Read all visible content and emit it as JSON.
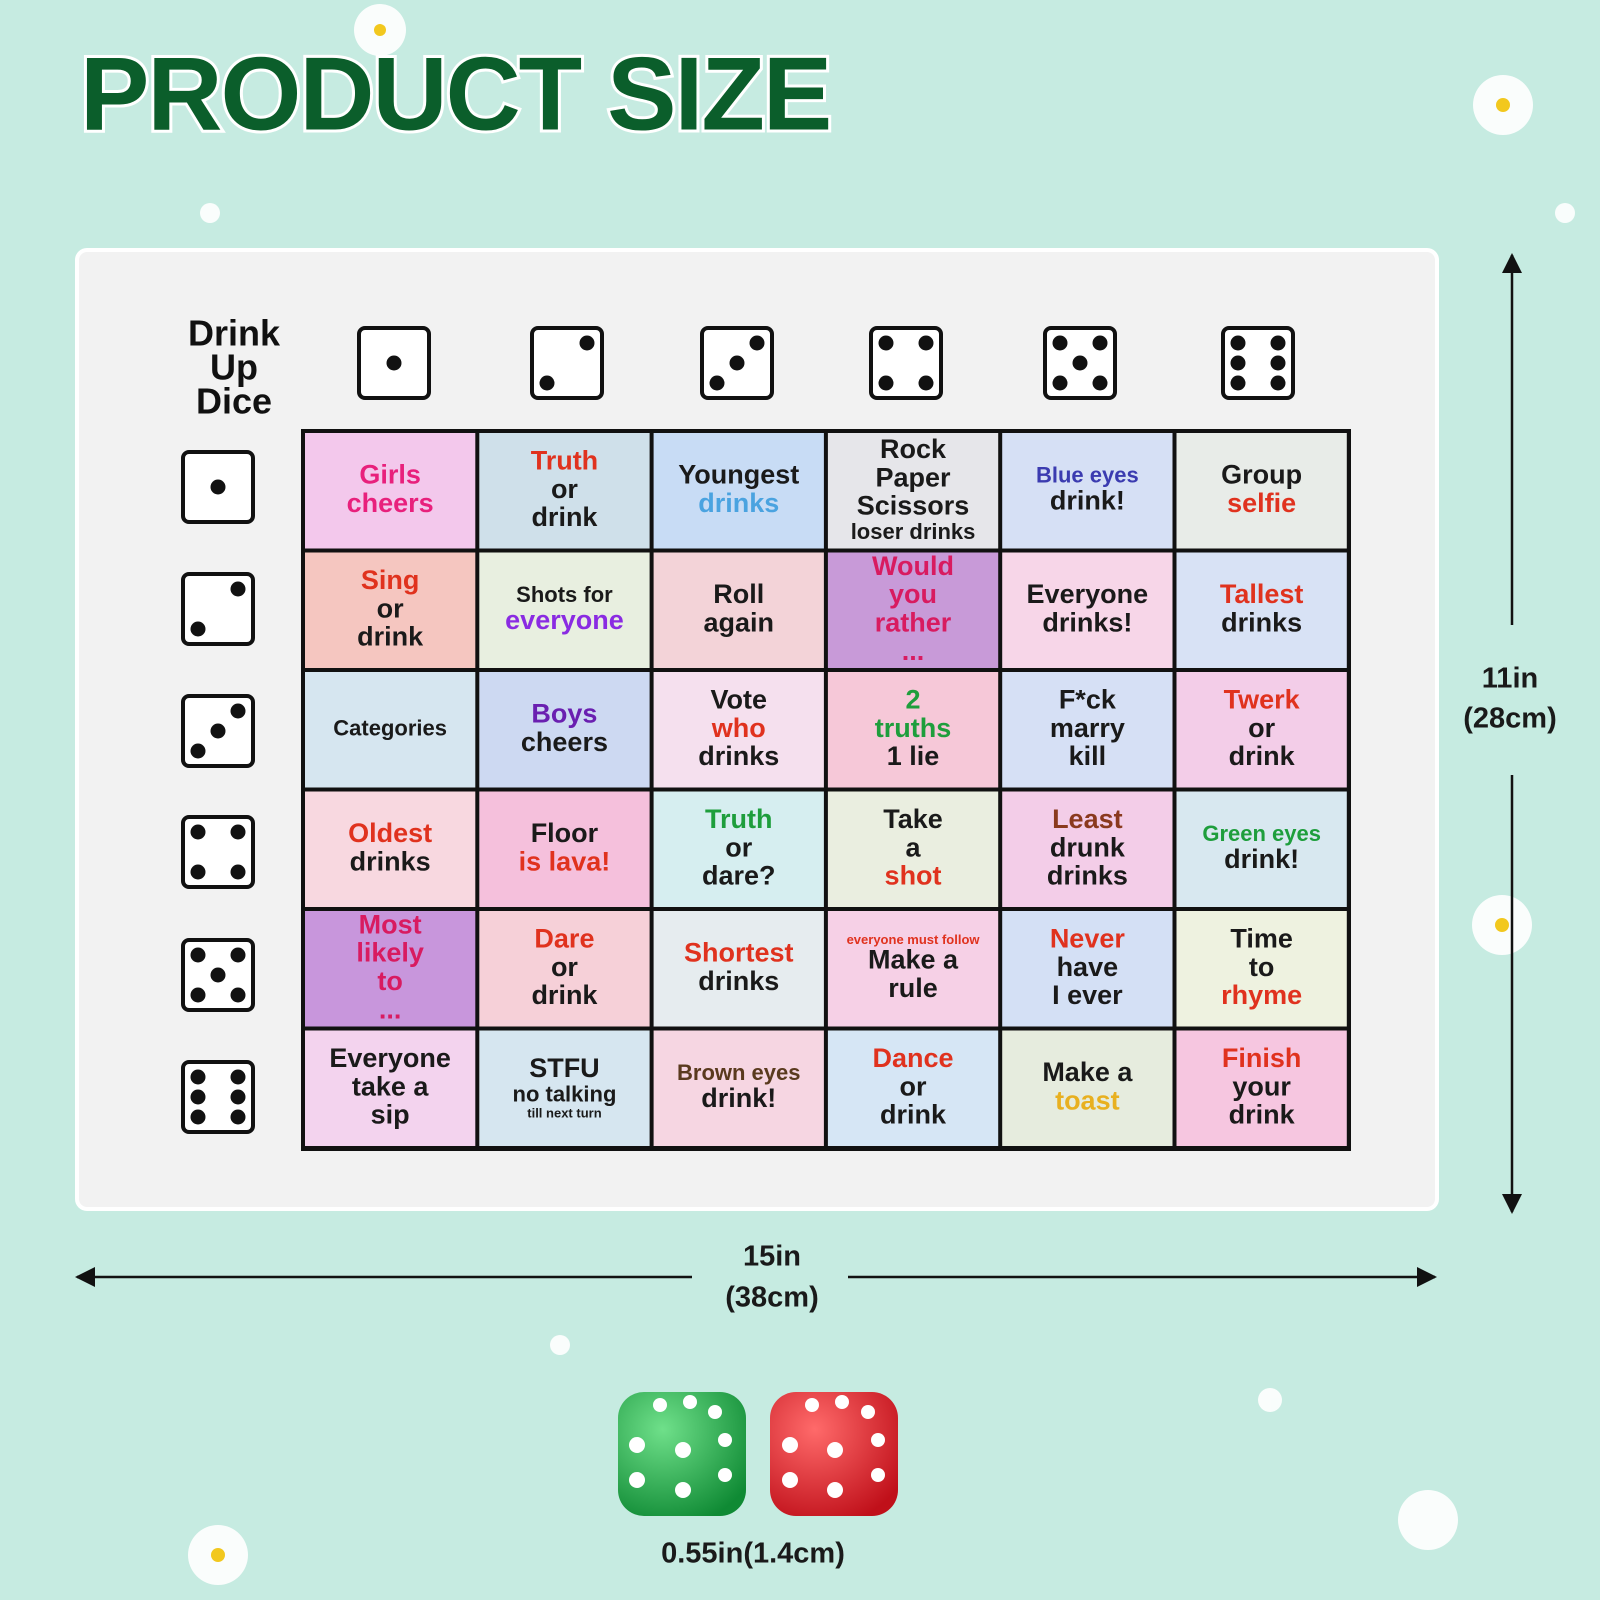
{
  "header": {
    "title": "PRODUCT SIZE"
  },
  "mat": {
    "title_lines": [
      "Drink",
      "Up",
      "Dice"
    ],
    "cells": [
      [
        [
          "Girls",
          "cheers"
        ],
        [
          "Truth",
          "or",
          "drink"
        ],
        [
          "Youngest",
          "drinks"
        ],
        [
          "Rock",
          "Paper",
          "Scissors",
          "loser drinks"
        ],
        [
          "Blue eyes",
          "drink!"
        ],
        [
          "Group",
          "selfie"
        ]
      ],
      [
        [
          "Sing",
          "or",
          "drink"
        ],
        [
          "Shots for",
          "everyone"
        ],
        [
          "Roll",
          "again"
        ],
        [
          "Would",
          "you",
          "rather",
          "..."
        ],
        [
          "Everyone",
          "drinks!"
        ],
        [
          "Tallest",
          "drinks"
        ]
      ],
      [
        [
          "Categories"
        ],
        [
          "Boys",
          "cheers"
        ],
        [
          "Vote",
          "who",
          "drinks"
        ],
        [
          "2",
          "truths",
          "1 lie"
        ],
        [
          "F*ck",
          "marry",
          "kill"
        ],
        [
          "Twerk",
          "or",
          "drink"
        ]
      ],
      [
        [
          "Oldest",
          "drinks"
        ],
        [
          "Floor",
          "is lava!"
        ],
        [
          "Truth",
          "or",
          "dare?"
        ],
        [
          "Take",
          "a",
          "shot"
        ],
        [
          "Least",
          "drunk",
          "drinks"
        ],
        [
          "Green eyes",
          "drink!"
        ]
      ],
      [
        [
          "Most",
          "likely",
          "to",
          "..."
        ],
        [
          "Dare",
          "or",
          "drink"
        ],
        [
          "Shortest",
          "drinks"
        ],
        [
          "everyone must follow",
          "Make a",
          "rule"
        ],
        [
          "Never",
          "have",
          "I ever"
        ],
        [
          "Time",
          "to",
          "rhyme"
        ]
      ],
      [
        [
          "Everyone",
          "take a",
          "sip"
        ],
        [
          "STFU",
          "no talking",
          "till next turn"
        ],
        [
          "Brown eyes",
          "drink!"
        ],
        [
          "Dance",
          "or",
          "drink"
        ],
        [
          "Make a",
          "toast"
        ],
        [
          "Finish",
          "your",
          "drink"
        ]
      ]
    ]
  },
  "dimensions": {
    "height": [
      "11in",
      "(28cm)"
    ],
    "width": [
      "15in",
      "(38cm)"
    ],
    "dice": "0.55in(1.4cm)"
  }
}
